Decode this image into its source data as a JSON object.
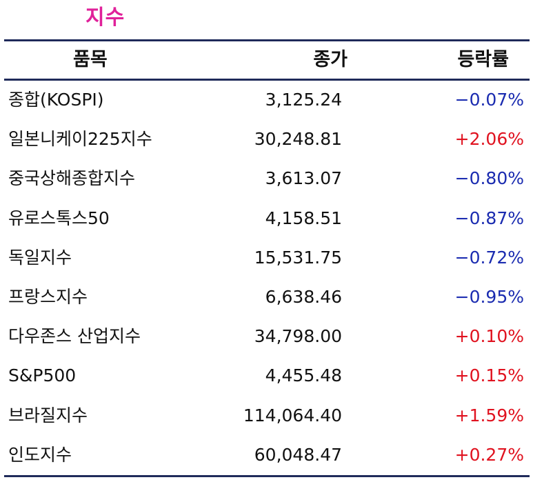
{
  "title": "지수",
  "header": {
    "name": "품목",
    "close": "종가",
    "change": "등락률"
  },
  "rows": [
    {
      "name": "종합(KOSPI)",
      "close": "3,125.24",
      "change": "−0.07%",
      "direction": "down"
    },
    {
      "name": "일본니케이225지수",
      "close": "30,248.81",
      "change": "+2.06%",
      "direction": "up"
    },
    {
      "name": "중국상해종합지수",
      "close": "3,613.07",
      "change": "−0.80%",
      "direction": "down"
    },
    {
      "name": "유로스톡스50",
      "close": "4,158.51",
      "change": "−0.87%",
      "direction": "down"
    },
    {
      "name": "독일지수",
      "close": "15,531.75",
      "change": "−0.72%",
      "direction": "down"
    },
    {
      "name": "프랑스지수",
      "close": "6,638.46",
      "change": "−0.95%",
      "direction": "down"
    },
    {
      "name": "다우존스 산업지수",
      "close": "34,798.00",
      "change": "+0.10%",
      "direction": "up"
    },
    {
      "name": "S&P500",
      "close": "4,455.48",
      "change": "+0.15%",
      "direction": "up"
    },
    {
      "name": "브라질지수",
      "close": "114,064.40",
      "change": "+1.59%",
      "direction": "up"
    },
    {
      "name": "인도지수",
      "close": "60,048.47",
      "change": "+0.27%",
      "direction": "up"
    }
  ],
  "colors": {
    "title": "#e0219a",
    "rule": "#1f2a5a",
    "down": "#1a2bb0",
    "up": "#e0121f"
  }
}
